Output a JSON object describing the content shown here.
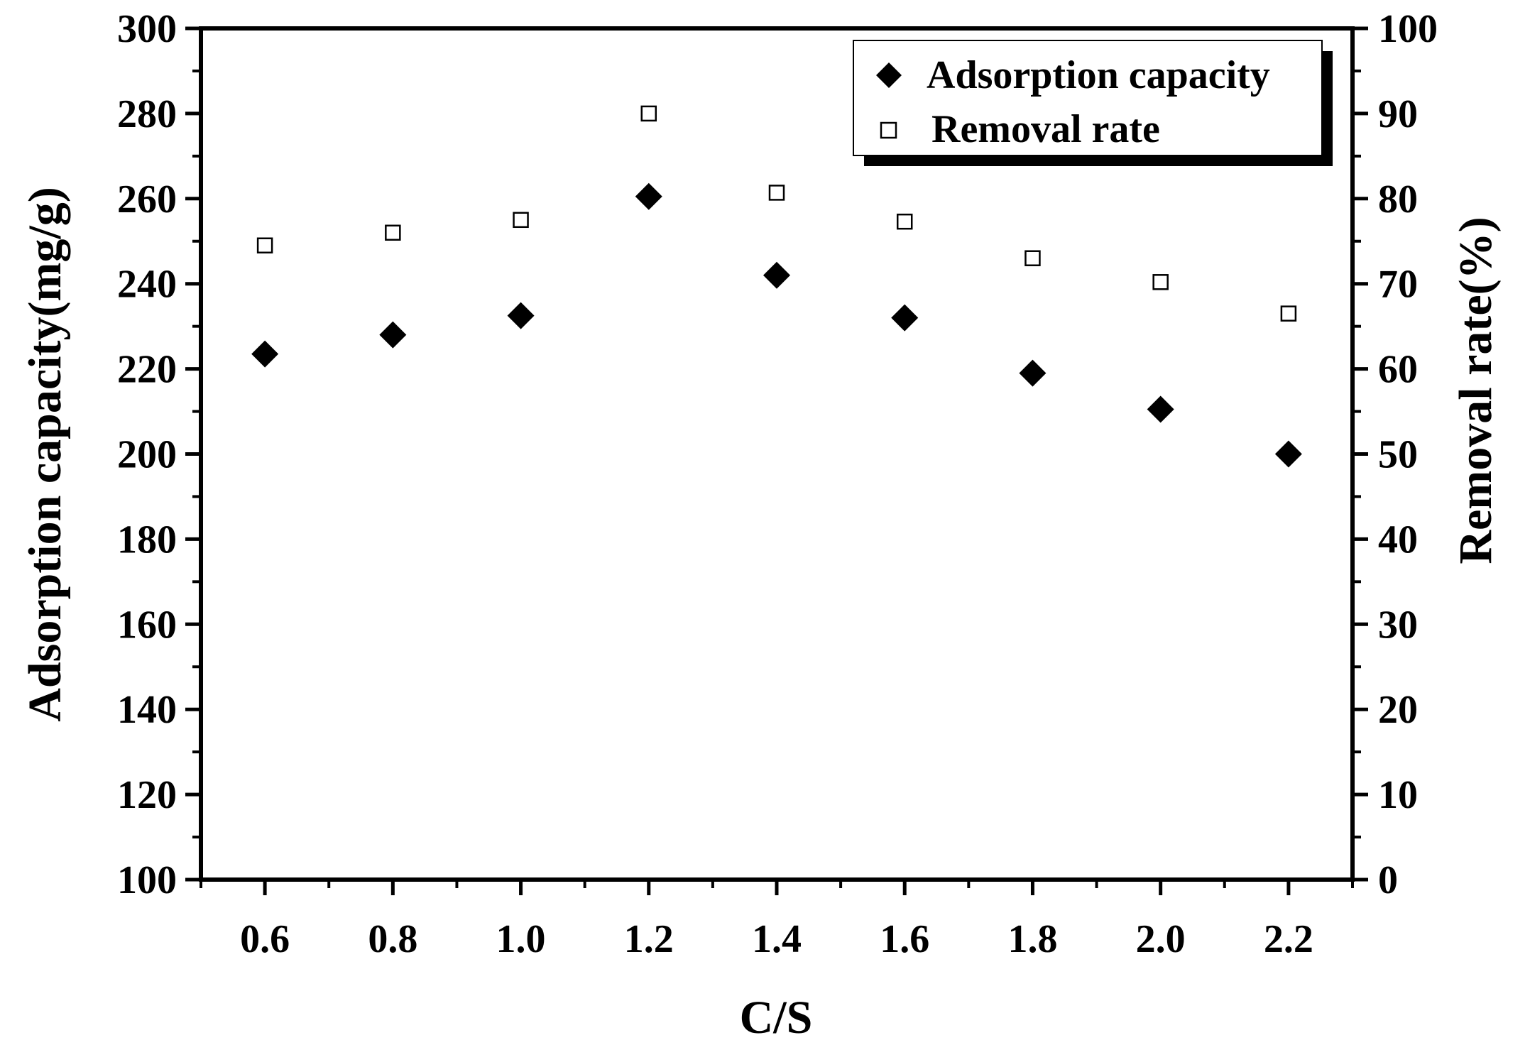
{
  "chart_data": {
    "type": "scatter",
    "title": "",
    "xlabel": "C/S",
    "ylabel": "Adsorption capacity(mg/g)",
    "y2label": "Removal rate(%)",
    "x": [
      0.6,
      0.8,
      1.0,
      1.2,
      1.4,
      1.6,
      1.8,
      2.0,
      2.2
    ],
    "x_tick_labels": [
      "0.6",
      "0.8",
      "1.0",
      "1.2",
      "1.4",
      "1.6",
      "1.8",
      "2.0",
      "2.2"
    ],
    "xlim": [
      0.5,
      2.3
    ],
    "ylim": [
      100,
      300
    ],
    "y2lim": [
      0,
      100
    ],
    "y_tick_labels": [
      "100",
      "120",
      "140",
      "160",
      "180",
      "200",
      "220",
      "240",
      "260",
      "280",
      "300"
    ],
    "y2_tick_labels": [
      "0",
      "10",
      "20",
      "30",
      "40",
      "50",
      "60",
      "70",
      "80",
      "90",
      "100"
    ],
    "series": [
      {
        "name": "Adsorption capacity",
        "axis": "left",
        "marker": "filled-diamond",
        "values": [
          223.5,
          228,
          232.5,
          260.5,
          242,
          232,
          219,
          210.5,
          200
        ]
      },
      {
        "name": "Removal rate",
        "axis": "right",
        "marker": "open-square",
        "values": [
          74.5,
          76,
          77.5,
          90,
          80.7,
          77.3,
          73,
          70.2,
          66.5
        ]
      }
    ],
    "legend": {
      "position": "top-right",
      "entries": [
        "Adsorption capacity",
        "Removal rate"
      ]
    },
    "grid": false
  }
}
